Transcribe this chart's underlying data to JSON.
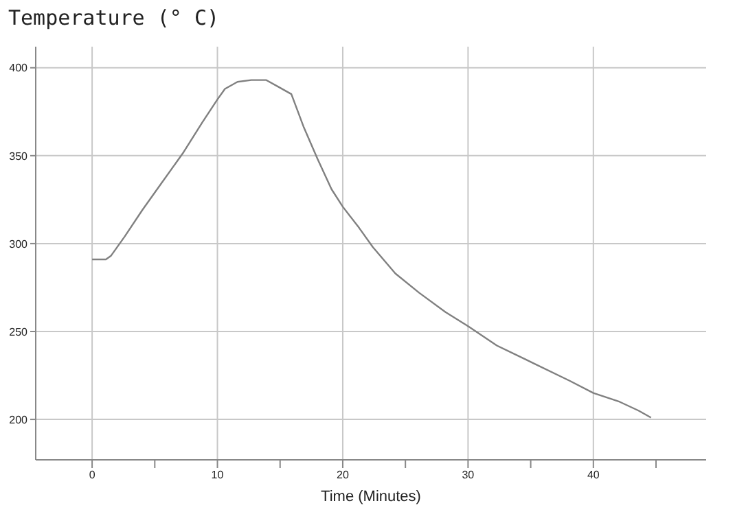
{
  "chart_data": {
    "type": "line",
    "ylabel": "Temperature (° C)",
    "xlabel": "Time (Minutes)",
    "x": [
      0,
      1.1,
      1.5,
      2.6,
      4.0,
      5.5,
      7.3,
      8.8,
      10,
      10.6,
      11.6,
      12.7,
      13.9,
      14.9,
      15.9,
      16.9,
      18.0,
      19.1,
      20,
      21.3,
      22.4,
      24.2,
      26.1,
      28.2,
      30,
      32.3,
      35.2,
      38.1,
      40,
      42.1,
      43.6,
      44.6
    ],
    "series": [
      {
        "color": "#808080",
        "values": [
          291,
          291,
          293,
          304,
          319,
          334,
          352,
          369,
          382,
          388,
          392,
          393,
          393,
          389,
          385,
          366,
          348,
          331,
          321,
          309,
          298,
          283,
          272,
          261,
          253,
          242,
          232,
          222,
          215,
          210,
          205,
          201
        ]
      }
    ],
    "xlim": [
      -4.5,
      49
    ],
    "xticks": [
      0,
      {
        "value": 5,
        "label": null
      },
      10,
      {
        "value": 15,
        "label": null
      },
      20,
      {
        "value": 25,
        "label": null
      },
      30,
      {
        "value": 35,
        "label": null
      },
      40,
      {
        "value": 45,
        "label": null
      }
    ],
    "ylim": [
      177,
      412
    ],
    "yticks": [
      200,
      250,
      300,
      350,
      400
    ],
    "grid": true,
    "marker": "none",
    "line_style": "solid"
  }
}
